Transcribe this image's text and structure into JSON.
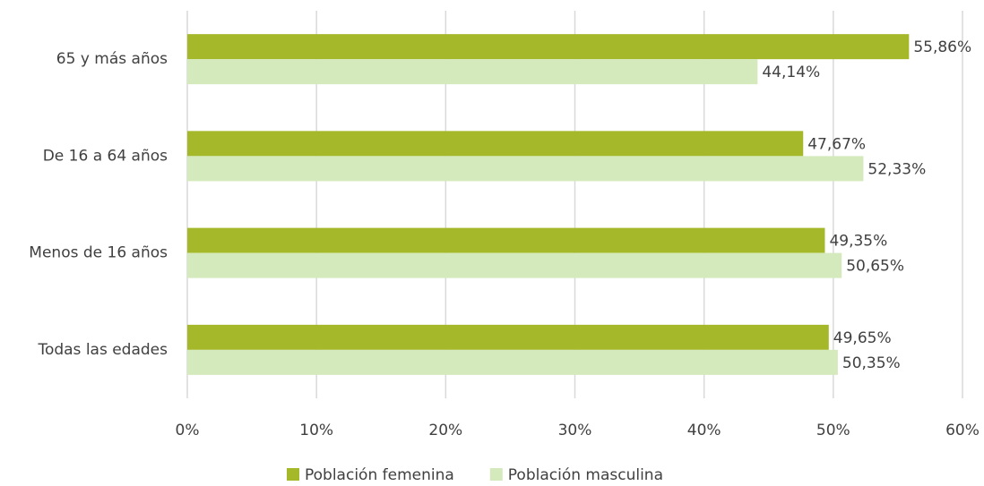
{
  "chart_data": {
    "type": "bar",
    "orientation": "horizontal",
    "categories": [
      "65 y más años",
      "De 16 a 64 años",
      "Menos de 16 años",
      "Todas las edades"
    ],
    "series": [
      {
        "name": "Población femenina",
        "color": "#a5b82a",
        "values": [
          55.86,
          47.67,
          49.35,
          49.65
        ],
        "value_labels": [
          "55,86%",
          "47,67%",
          "49,35%",
          "49,65%"
        ]
      },
      {
        "name": "Población masculina",
        "color": "#d4eabc",
        "values": [
          44.14,
          52.33,
          50.65,
          50.35
        ],
        "value_labels": [
          "44,14%",
          "52,33%",
          "50,65%",
          "50,35%"
        ]
      }
    ],
    "xlim": [
      0,
      60
    ],
    "xticks": [
      {
        "value": 0,
        "label": "0%"
      },
      {
        "value": 10,
        "label": "10%"
      },
      {
        "value": 20,
        "label": "20%"
      },
      {
        "value": 30,
        "label": "30%"
      },
      {
        "value": 40,
        "label": "40%"
      },
      {
        "value": 50,
        "label": "50%"
      },
      {
        "value": 60,
        "label": "60%"
      }
    ],
    "grid": true,
    "legend": "bottom"
  }
}
